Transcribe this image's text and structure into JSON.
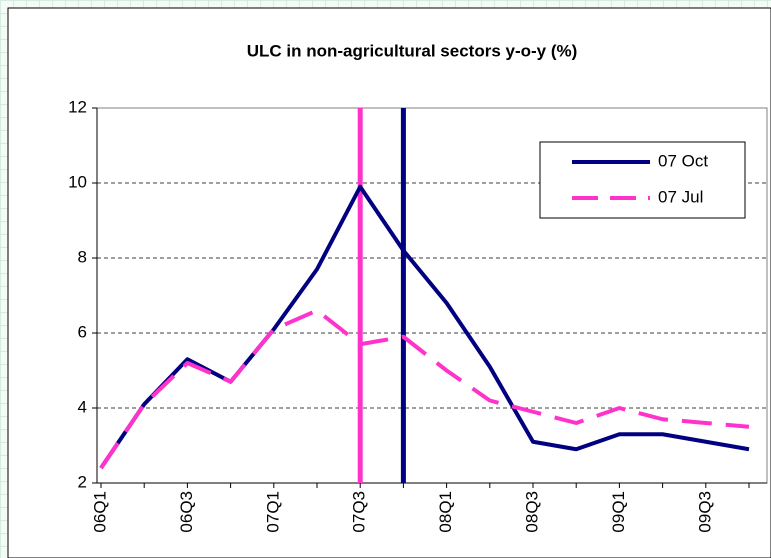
{
  "chart_data": {
    "type": "line",
    "title": "ULC in non-agricultural sectors y-o-y (%)",
    "categories": [
      "06Q1",
      null,
      "06Q3",
      null,
      "07Q1",
      null,
      "07Q3",
      null,
      "08Q1",
      null,
      "08Q3",
      null,
      "09Q1",
      null,
      "09Q3",
      null
    ],
    "series": [
      {
        "name": "07 Oct",
        "color": "#000080",
        "dash": false,
        "values": [
          2.4,
          4.1,
          5.3,
          4.7,
          6.1,
          7.7,
          9.9,
          8.2,
          6.8,
          5.1,
          3.1,
          2.9,
          3.3,
          3.3,
          3.1,
          2.9
        ]
      },
      {
        "name": "07 Jul",
        "color": "#ff33cc",
        "dash": true,
        "values": [
          2.4,
          4.1,
          5.2,
          4.7,
          6.1,
          6.6,
          5.7,
          5.9,
          5.0,
          4.2,
          3.9,
          3.6,
          4.0,
          3.7,
          3.6,
          3.5
        ]
      }
    ],
    "vlines": [
      {
        "color": "#ff33cc",
        "at": 6
      },
      {
        "color": "#000080",
        "at": 7
      }
    ],
    "ylim": [
      2,
      12
    ],
    "yticks": [
      2,
      4,
      6,
      8,
      10,
      12
    ],
    "grid": true,
    "legend": "top-right"
  }
}
